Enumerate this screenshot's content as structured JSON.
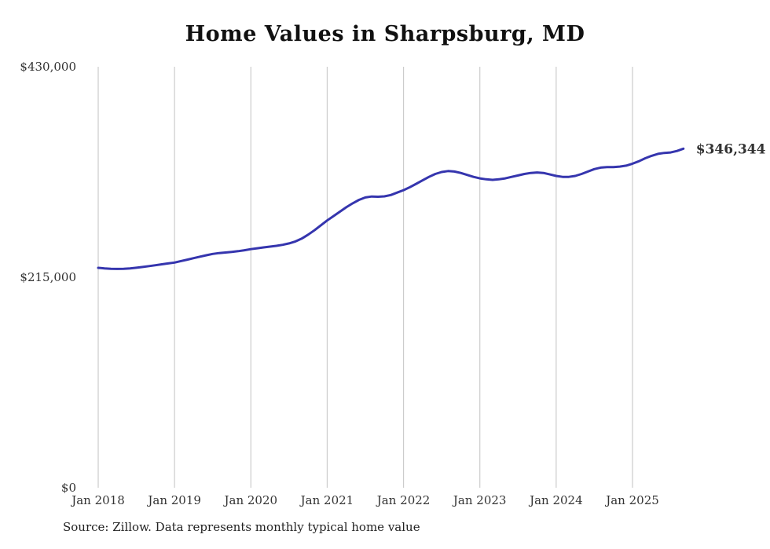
{
  "title": "Home Values in Sharpsburg, MD",
  "source_note": "Source: Zillow. Data represents monthly typical home value",
  "end_label": "$346,344",
  "colors": {
    "line": "#3535ae",
    "end_label": "#3535ae",
    "grid": "#cccccc",
    "axis_text": "#333333",
    "title_text": "#111111"
  },
  "chart_data": {
    "type": "line",
    "title": "Home Values in Sharpsburg, MD",
    "xlabel": "",
    "ylabel": "",
    "ylim": [
      0,
      430000
    ],
    "grid": "vertical-only",
    "legend": "none",
    "y_ticks": [
      {
        "value": 0,
        "label": "$0"
      },
      {
        "value": 215000,
        "label": "$215,000"
      },
      {
        "value": 430000,
        "label": "$430,000"
      }
    ],
    "x_tick_labels": [
      "Jan 2018",
      "Jan 2019",
      "Jan 2020",
      "Jan 2021",
      "Jan 2022",
      "Jan 2023",
      "Jan 2024",
      "Jan 2025"
    ],
    "start_month": "2018-01",
    "end_month": "2025-09",
    "frequency": "monthly",
    "end_value": 346344,
    "end_value_label": "$346,344",
    "series": [
      {
        "name": "Typical home value",
        "values": [
          224600,
          224100,
          223700,
          223500,
          223600,
          224000,
          224700,
          225500,
          226400,
          227300,
          228200,
          229100,
          230000,
          231500,
          233000,
          234500,
          236000,
          237500,
          238800,
          239700,
          240300,
          240900,
          241600,
          242600,
          243700,
          244600,
          245500,
          246300,
          247100,
          248100,
          249600,
          251600,
          254500,
          258500,
          263000,
          268000,
          273000,
          277500,
          282000,
          286500,
          290500,
          294000,
          296500,
          297500,
          297200,
          297600,
          299000,
          301500,
          304000,
          307000,
          310500,
          314000,
          317500,
          320500,
          322500,
          323500,
          323000,
          321500,
          319500,
          317500,
          316000,
          315000,
          314500,
          315000,
          316000,
          317500,
          319000,
          320500,
          321500,
          322000,
          321500,
          320000,
          318500,
          317500,
          317500,
          318500,
          320500,
          323000,
          325500,
          327000,
          327500,
          327500,
          328000,
          329000,
          331000,
          333500,
          336500,
          339000,
          341000,
          342000,
          342500,
          344000,
          346344
        ]
      }
    ]
  }
}
